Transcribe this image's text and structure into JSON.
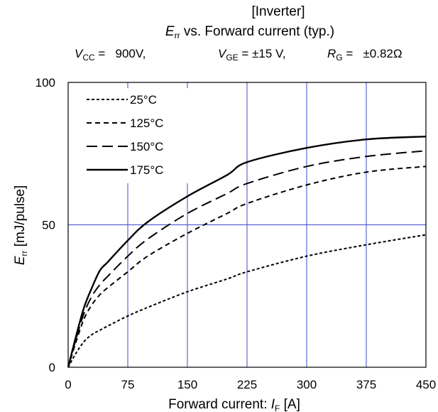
{
  "chart_data": {
    "type": "line",
    "title": "[Inverter]",
    "subtitle": {
      "sym": "E",
      "sub": "rr",
      "rest": " vs. Forward current  (typ.)"
    },
    "conditions": [
      {
        "sym": "V",
        "sub": "CC",
        "value": " =   900V,"
      },
      {
        "sym": "V",
        "sub": "GE",
        "value": " = ±15 V,"
      },
      {
        "sym": "R",
        "sub": "G",
        "value": " =   ±0.82Ω"
      }
    ],
    "xlabel": {
      "text": "Forward current: ",
      "sym": "I",
      "sub": "F",
      "unit": " [A]"
    },
    "ylabel": {
      "sym": "E",
      "sub": "rr",
      "unit": " [mJ/pulse]"
    },
    "xlim": [
      0,
      450
    ],
    "ylim": [
      0,
      100
    ],
    "xticks": [
      "0",
      "75",
      "150",
      "225",
      "300",
      "375",
      "450"
    ],
    "yticks": [
      "0",
      "50",
      "100"
    ],
    "grid": true,
    "gridColor": "#3f48cc",
    "legend": "top-left",
    "series": [
      {
        "name": "25°C",
        "dash": "short",
        "points": [
          [
            0,
            0
          ],
          [
            10,
            5
          ],
          [
            20,
            9
          ],
          [
            30,
            11.5
          ],
          [
            40,
            13
          ],
          [
            50,
            14.5
          ],
          [
            75,
            18
          ],
          [
            100,
            21
          ],
          [
            150,
            26.5
          ],
          [
            200,
            31
          ],
          [
            225,
            33.5
          ],
          [
            300,
            39
          ],
          [
            375,
            43
          ],
          [
            450,
            46.5
          ]
        ]
      },
      {
        "name": "125°C",
        "dash": "medium",
        "points": [
          [
            0,
            0
          ],
          [
            10,
            9
          ],
          [
            20,
            17
          ],
          [
            30,
            22
          ],
          [
            40,
            25.5
          ],
          [
            50,
            28
          ],
          [
            75,
            33.5
          ],
          [
            100,
            39
          ],
          [
            150,
            47
          ],
          [
            200,
            54
          ],
          [
            225,
            57.5
          ],
          [
            300,
            64
          ],
          [
            375,
            68.5
          ],
          [
            450,
            70.5
          ]
        ]
      },
      {
        "name": "150°C",
        "dash": "long",
        "points": [
          [
            0,
            0
          ],
          [
            10,
            10
          ],
          [
            20,
            19
          ],
          [
            30,
            25
          ],
          [
            40,
            29
          ],
          [
            50,
            32
          ],
          [
            75,
            39
          ],
          [
            100,
            45
          ],
          [
            150,
            54
          ],
          [
            200,
            61
          ],
          [
            225,
            64.5
          ],
          [
            300,
            70.5
          ],
          [
            375,
            74
          ],
          [
            450,
            76
          ]
        ]
      },
      {
        "name": "175°C",
        "dash": "solid",
        "points": [
          [
            0,
            0
          ],
          [
            10,
            11
          ],
          [
            20,
            21
          ],
          [
            30,
            28
          ],
          [
            40,
            34
          ],
          [
            50,
            37
          ],
          [
            75,
            44.5
          ],
          [
            100,
            51
          ],
          [
            150,
            60
          ],
          [
            200,
            67.5
          ],
          [
            225,
            72
          ],
          [
            300,
            77
          ],
          [
            375,
            80
          ],
          [
            450,
            81
          ]
        ]
      }
    ]
  }
}
